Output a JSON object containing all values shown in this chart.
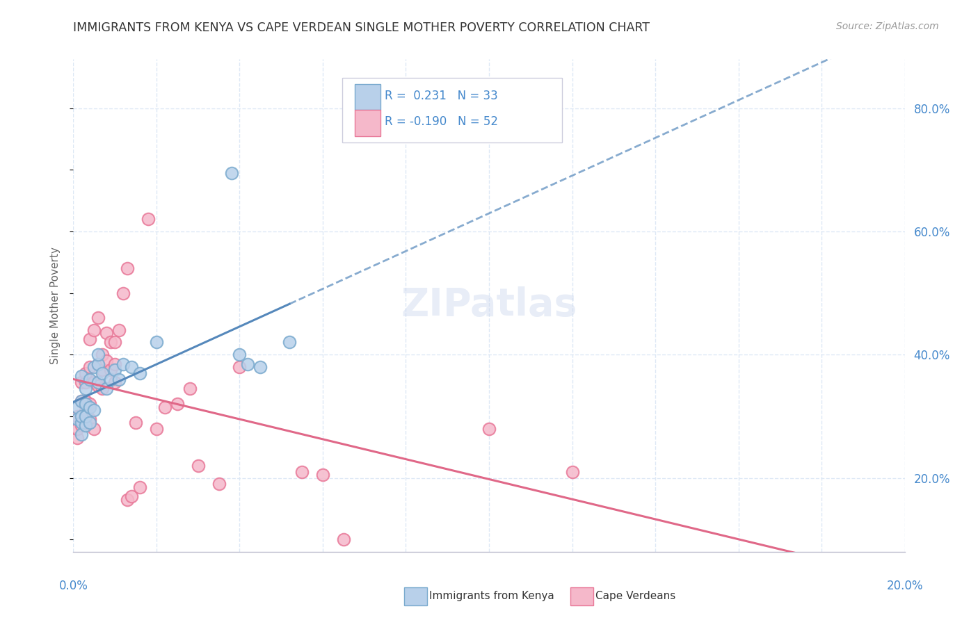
{
  "title": "IMMIGRANTS FROM KENYA VS CAPE VERDEAN SINGLE MOTHER POVERTY CORRELATION CHART",
  "source": "Source: ZipAtlas.com",
  "ylabel": "Single Mother Poverty",
  "legend_kenya_label": "Immigrants from Kenya",
  "legend_cape_label": "Cape Verdeans",
  "R_kenya": 0.231,
  "N_kenya": 33,
  "R_cape": -0.19,
  "N_cape": 52,
  "color_kenya_fill": "#b8d0ea",
  "color_kenya_edge": "#7aaace",
  "color_cape_fill": "#f5b8ca",
  "color_cape_edge": "#e87898",
  "color_kenya_line": "#5588bb",
  "color_cape_line": "#e06888",
  "color_text_blue": "#4488cc",
  "color_axis_label": "#6699cc",
  "background": "#ffffff",
  "grid_color": "#dde8f5",
  "kenya_x": [
    0.001,
    0.001,
    0.002,
    0.002,
    0.002,
    0.002,
    0.002,
    0.003,
    0.003,
    0.003,
    0.003,
    0.004,
    0.004,
    0.004,
    0.005,
    0.005,
    0.006,
    0.006,
    0.006,
    0.007,
    0.008,
    0.009,
    0.01,
    0.011,
    0.012,
    0.014,
    0.016,
    0.02,
    0.038,
    0.04,
    0.042,
    0.045,
    0.052
  ],
  "kenya_y": [
    0.295,
    0.315,
    0.27,
    0.29,
    0.3,
    0.325,
    0.365,
    0.285,
    0.3,
    0.32,
    0.345,
    0.29,
    0.315,
    0.36,
    0.31,
    0.38,
    0.355,
    0.385,
    0.4,
    0.37,
    0.345,
    0.36,
    0.375,
    0.36,
    0.385,
    0.38,
    0.37,
    0.42,
    0.695,
    0.4,
    0.385,
    0.38,
    0.42
  ],
  "cape_x": [
    0.001,
    0.001,
    0.001,
    0.002,
    0.002,
    0.002,
    0.002,
    0.003,
    0.003,
    0.003,
    0.003,
    0.003,
    0.004,
    0.004,
    0.004,
    0.004,
    0.005,
    0.005,
    0.005,
    0.006,
    0.006,
    0.006,
    0.007,
    0.007,
    0.007,
    0.008,
    0.008,
    0.009,
    0.009,
    0.01,
    0.01,
    0.01,
    0.011,
    0.012,
    0.013,
    0.013,
    0.014,
    0.015,
    0.016,
    0.018,
    0.02,
    0.022,
    0.025,
    0.028,
    0.03,
    0.035,
    0.04,
    0.055,
    0.06,
    0.065,
    0.1,
    0.12
  ],
  "cape_y": [
    0.265,
    0.28,
    0.3,
    0.285,
    0.3,
    0.325,
    0.355,
    0.29,
    0.31,
    0.325,
    0.355,
    0.37,
    0.295,
    0.32,
    0.38,
    0.425,
    0.28,
    0.355,
    0.44,
    0.35,
    0.385,
    0.46,
    0.345,
    0.375,
    0.4,
    0.39,
    0.435,
    0.375,
    0.42,
    0.355,
    0.385,
    0.42,
    0.44,
    0.5,
    0.165,
    0.54,
    0.17,
    0.29,
    0.185,
    0.62,
    0.28,
    0.315,
    0.32,
    0.345,
    0.22,
    0.19,
    0.38,
    0.21,
    0.205,
    0.1,
    0.28,
    0.21
  ],
  "xmin": 0.0,
  "xmax": 0.2,
  "ymin": 0.08,
  "ymax": 0.88,
  "yticks": [
    0.2,
    0.4,
    0.6,
    0.8
  ],
  "ytick_labels": [
    "20.0%",
    "40.0%",
    "60.0%",
    "80.0%"
  ],
  "xtick_labels_x": [
    0.0,
    0.02,
    0.04,
    0.06,
    0.08,
    0.1,
    0.12,
    0.14,
    0.16,
    0.18,
    0.2
  ],
  "kenya_line_x": [
    0.0,
    0.2
  ],
  "cape_line_x": [
    0.0,
    0.2
  ]
}
